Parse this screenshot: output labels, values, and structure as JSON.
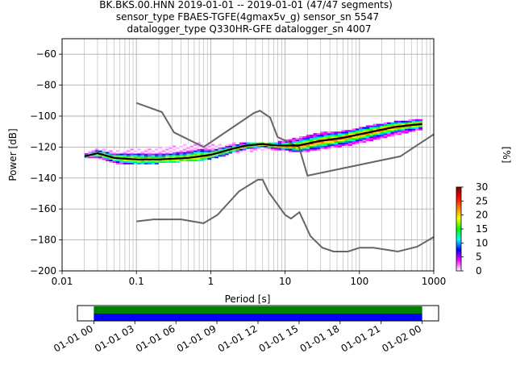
{
  "title_lines": [
    "BK.BKS.00.HNN   2019-01-01 -- 2019-01-01  (47/47 segments)",
    "sensor_type FBAES-TGFE(4gmax5v_g) sensor_sn 5547",
    "datalogger_type Q330HR-GFE datalogger_sn 4007"
  ],
  "chart_data": [
    {
      "type": "heatmap",
      "name": "ppsd",
      "xlabel": "Period [s]",
      "ylabel": "Power [dB]",
      "xscale": "log",
      "xlim": [
        0.01,
        1000
      ],
      "ylim": [
        -200,
        -50
      ],
      "x_ticks": [
        0.01,
        0.1,
        1,
        10,
        100,
        1000
      ],
      "x_tick_labels": [
        "0.01",
        "0.1",
        "1",
        "10",
        "100",
        "1000"
      ],
      "y_ticks": [
        -200,
        -180,
        -160,
        -140,
        -120,
        -100,
        -80,
        -60
      ],
      "y_tick_labels": [
        "−200",
        "−180",
        "−160",
        "−140",
        "−120",
        "−100",
        "−80",
        "−60"
      ],
      "grid": true,
      "density_band": [
        {
          "period": 0.02,
          "low": -127,
          "high": -125
        },
        {
          "period": 0.03,
          "low": -127,
          "high": -121
        },
        {
          "period": 0.05,
          "low": -130,
          "high": -123
        },
        {
          "period": 0.1,
          "low": -131,
          "high": -121
        },
        {
          "period": 0.2,
          "low": -130,
          "high": -121
        },
        {
          "period": 0.4,
          "low": -129,
          "high": -119
        },
        {
          "period": 0.7,
          "low": -129,
          "high": -117
        },
        {
          "period": 1,
          "low": -127,
          "high": -119
        },
        {
          "period": 2,
          "low": -124,
          "high": -118
        },
        {
          "period": 4,
          "low": -122,
          "high": -117
        },
        {
          "period": 8,
          "low": -121,
          "high": -117
        },
        {
          "period": 15,
          "low": -123,
          "high": -114
        },
        {
          "period": 30,
          "low": -121,
          "high": -111
        },
        {
          "period": 60,
          "low": -119,
          "high": -110
        },
        {
          "period": 150,
          "low": -115,
          "high": -106
        },
        {
          "period": 300,
          "low": -112,
          "high": -104
        },
        {
          "period": 700,
          "low": -108,
          "high": -102
        }
      ],
      "mean_curve": {
        "period": [
          0.02,
          0.03,
          0.05,
          0.1,
          0.2,
          0.5,
          1,
          2,
          3,
          5,
          8,
          15,
          30,
          60,
          150,
          300,
          700
        ],
        "power": [
          -126,
          -124,
          -127,
          -128,
          -128,
          -127,
          -125,
          -121,
          -119,
          -118,
          -119,
          -119,
          -116,
          -114,
          -110,
          -107,
          -105
        ]
      },
      "noise_models": [
        {
          "name": "NHNM",
          "period": [
            0.1,
            0.22,
            0.32,
            0.8,
            3.8,
            4.6,
            6.3,
            7.9,
            15.4,
            20,
            354.8,
            10000
          ],
          "power": [
            -91.5,
            -97.4,
            -110.5,
            -120,
            -98,
            -96.5,
            -101,
            -113.5,
            -120,
            -138.5,
            -126,
            -80.1
          ]
        },
        {
          "name": "NLNM",
          "period": [
            0.1,
            0.17,
            0.4,
            0.8,
            1.24,
            2.4,
            4.3,
            5,
            6,
            10,
            12,
            15.6,
            21.9,
            31.6,
            45,
            70,
            101,
            154,
            328,
            600,
            1000
          ],
          "power": [
            -168,
            -166.7,
            -166.7,
            -169.2,
            -163.7,
            -148.6,
            -141.1,
            -141.1,
            -149,
            -163.8,
            -166.2,
            -162.1,
            -177.5,
            -185,
            -187.5,
            -187.5,
            -185,
            -185,
            -187.5,
            -184.4,
            -178
          ]
        }
      ]
    },
    {
      "type": "bar",
      "name": "data-coverage",
      "x_ticks": [
        "01-01 00",
        "01-01 03",
        "01-01 06",
        "01-01 09",
        "01-01 12",
        "01-01 15",
        "01-01 18",
        "01-01 21",
        "01-02 00"
      ],
      "tick_hours": [
        0,
        3,
        6,
        9,
        12,
        15,
        18,
        21,
        24
      ],
      "xlim_hours": [
        -1.2,
        25.2
      ],
      "bars": [
        {
          "start_hour": 0,
          "end_hour": 24,
          "color": "#008000"
        },
        {
          "start_hour": 0,
          "end_hour": 24,
          "color": "#0000ff"
        }
      ]
    }
  ],
  "colorbar": {
    "label": "[%]",
    "ticks": [
      0,
      5,
      10,
      15,
      20,
      25,
      30
    ],
    "range": [
      0,
      30
    ],
    "stops": [
      "#ffffff",
      "#ff00ff",
      "#0000ff",
      "#00ffff",
      "#00ff00",
      "#ffff00",
      "#ff8000",
      "#ff0000",
      "#800000"
    ]
  },
  "colors": {
    "noise_model": "#666666",
    "mean_curve": "#000000",
    "grid": "#b0b0b0"
  }
}
